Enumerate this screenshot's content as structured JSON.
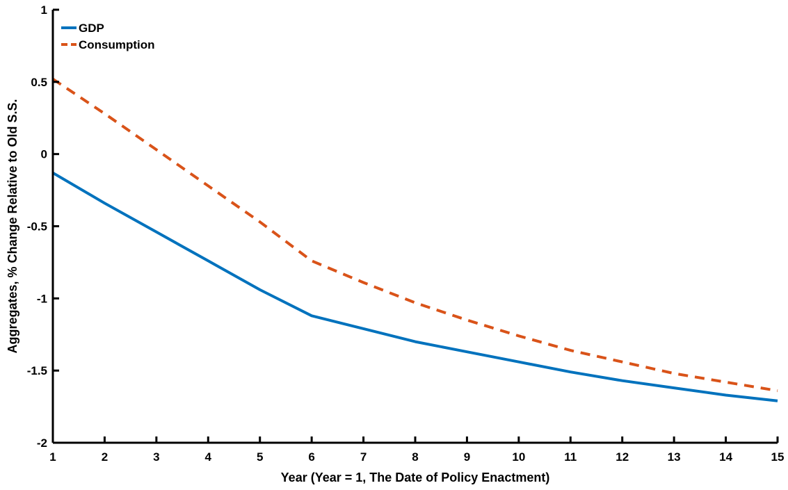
{
  "chart_data": {
    "type": "line",
    "title": "",
    "xlabel": "Year  (Year = 1, The Date of Policy Enactment)",
    "ylabel": "Aggregates, % Change Relative to Old S.S.",
    "xlim": [
      1,
      15
    ],
    "ylim": [
      -2,
      1
    ],
    "xticks": [
      1,
      2,
      3,
      4,
      5,
      6,
      7,
      8,
      9,
      10,
      11,
      12,
      13,
      14,
      15
    ],
    "yticks": [
      -2,
      -1.5,
      -1,
      -0.5,
      0,
      0.5,
      1
    ],
    "ytick_labels": [
      "-2",
      "-1.5",
      "-1",
      "-0.5",
      "0",
      "0.5",
      "1"
    ],
    "grid": false,
    "legend_position": "top-left",
    "x": [
      1,
      2,
      3,
      4,
      5,
      6,
      7,
      8,
      9,
      10,
      11,
      12,
      13,
      14,
      15
    ],
    "series": [
      {
        "name": "GDP",
        "color": "#0072BD",
        "style": "solid",
        "values": [
          -0.13,
          -0.34,
          -0.54,
          -0.74,
          -0.94,
          -1.12,
          -1.21,
          -1.3,
          -1.37,
          -1.44,
          -1.51,
          -1.57,
          -1.62,
          -1.67,
          -1.71
        ]
      },
      {
        "name": "Consumption",
        "color": "#D95319",
        "style": "dashed",
        "values": [
          0.52,
          0.28,
          0.03,
          -0.22,
          -0.47,
          -0.74,
          -0.89,
          -1.03,
          -1.15,
          -1.26,
          -1.36,
          -1.44,
          -1.52,
          -1.58,
          -1.64
        ]
      }
    ]
  }
}
